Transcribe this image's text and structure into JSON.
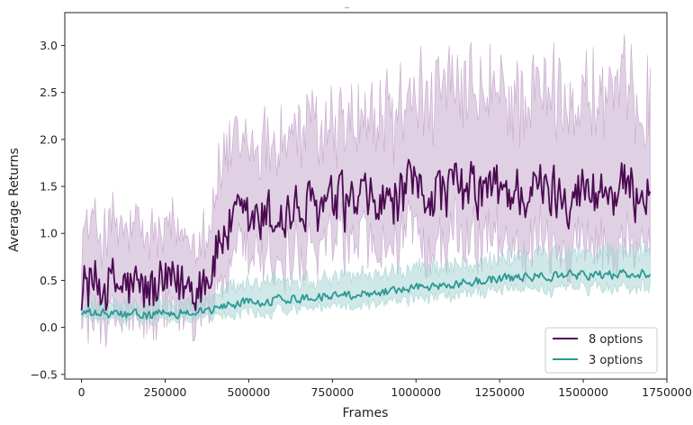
{
  "chart_data": {
    "type": "line",
    "title": "",
    "xlabel": "Frames",
    "ylabel": "Average Returns",
    "xlim": [
      -50000,
      1750000
    ],
    "ylim": [
      -0.55,
      3.35
    ],
    "xticks": [
      0,
      250000,
      500000,
      750000,
      1000000,
      1250000,
      1500000,
      1750000
    ],
    "xtick_labels": [
      "0",
      "250000",
      "500000",
      "750000",
      "1000000",
      "1250000",
      "1500000",
      "1750000"
    ],
    "yticks": [
      -0.5,
      0.0,
      0.5,
      1.0,
      1.5,
      2.0,
      2.5,
      3.0
    ],
    "ytick_labels": [
      "−0.5",
      "0.0",
      "0.5",
      "1.0",
      "1.5",
      "2.0",
      "2.5",
      "3.0"
    ],
    "grid": false,
    "legend_position": "bottom-right",
    "x_range": [
      0,
      1700000
    ],
    "series": [
      {
        "name": "8 options",
        "color": "#4b0a52",
        "band_color": "#c7a9cc",
        "knots": [
          [
            0,
            0.45
          ],
          [
            100000,
            0.45
          ],
          [
            200000,
            0.38
          ],
          [
            320000,
            0.45
          ],
          [
            380000,
            0.55
          ],
          [
            430000,
            1.05
          ],
          [
            550000,
            1.15
          ],
          [
            700000,
            1.25
          ],
          [
            800000,
            1.3
          ],
          [
            900000,
            1.3
          ],
          [
            1000000,
            1.45
          ],
          [
            1100000,
            1.45
          ],
          [
            1250000,
            1.45
          ],
          [
            1400000,
            1.45
          ],
          [
            1500000,
            1.45
          ],
          [
            1700000,
            1.45
          ]
        ],
        "noise": 0.28,
        "band_knots": [
          [
            0,
            0.6
          ],
          [
            380000,
            0.55
          ],
          [
            430000,
            0.8
          ],
          [
            900000,
            0.9
          ],
          [
            1000000,
            1.0
          ],
          [
            1700000,
            1.0
          ]
        ]
      },
      {
        "name": "3 options",
        "color": "#2a9a96",
        "band_color": "#a9d6d3",
        "knots": [
          [
            0,
            0.15
          ],
          [
            200000,
            0.13
          ],
          [
            380000,
            0.18
          ],
          [
            450000,
            0.25
          ],
          [
            600000,
            0.3
          ],
          [
            800000,
            0.35
          ],
          [
            1000000,
            0.42
          ],
          [
            1200000,
            0.5
          ],
          [
            1400000,
            0.55
          ],
          [
            1700000,
            0.57
          ]
        ],
        "noise": 0.045,
        "band_knots": [
          [
            0,
            0.1
          ],
          [
            380000,
            0.12
          ],
          [
            450000,
            0.2
          ],
          [
            1000000,
            0.2
          ],
          [
            1700000,
            0.25
          ]
        ]
      }
    ]
  },
  "top_mark": "_"
}
